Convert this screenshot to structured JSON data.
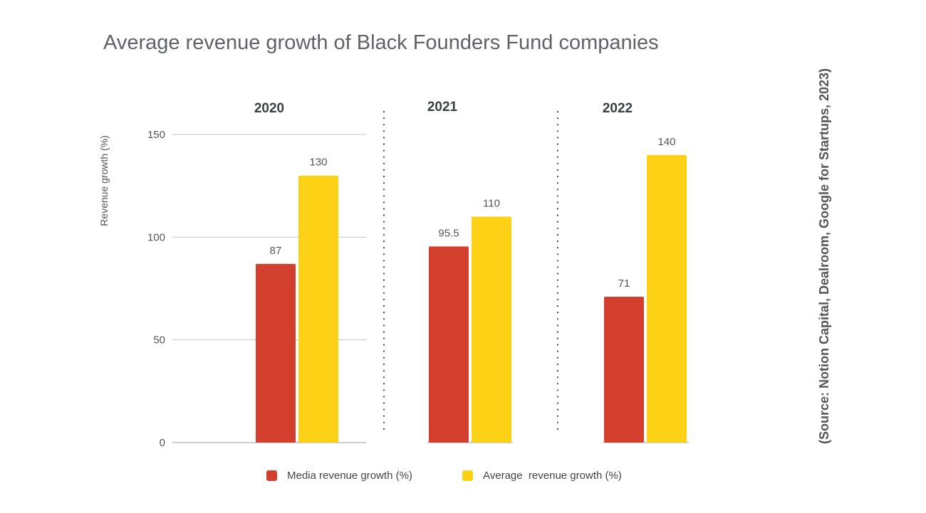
{
  "chart_data": {
    "type": "bar",
    "title": "Average revenue growth of Black Founders Fund companies",
    "source": "(Source: Notion Capital, Dealroom, Google for Startups, 2023)",
    "ylabel": "Revenue growth (%)",
    "xlabel": "",
    "ylim": [
      0,
      150
    ],
    "yticks": [
      0,
      50,
      100,
      150
    ],
    "grid": true,
    "legend_position": "bottom",
    "categories": [
      "2020",
      "2021",
      "2022"
    ],
    "series": [
      {
        "name": "Media revenue growth (%)",
        "color": "#d23f2c",
        "values": [
          87,
          95.5,
          71
        ],
        "labels": [
          "87",
          "95.5",
          "71"
        ]
      },
      {
        "name": "Average  revenue growth (%)",
        "color": "#fcd116",
        "values": [
          130,
          110,
          140
        ],
        "labels": [
          "130",
          "110",
          "140"
        ]
      }
    ]
  }
}
